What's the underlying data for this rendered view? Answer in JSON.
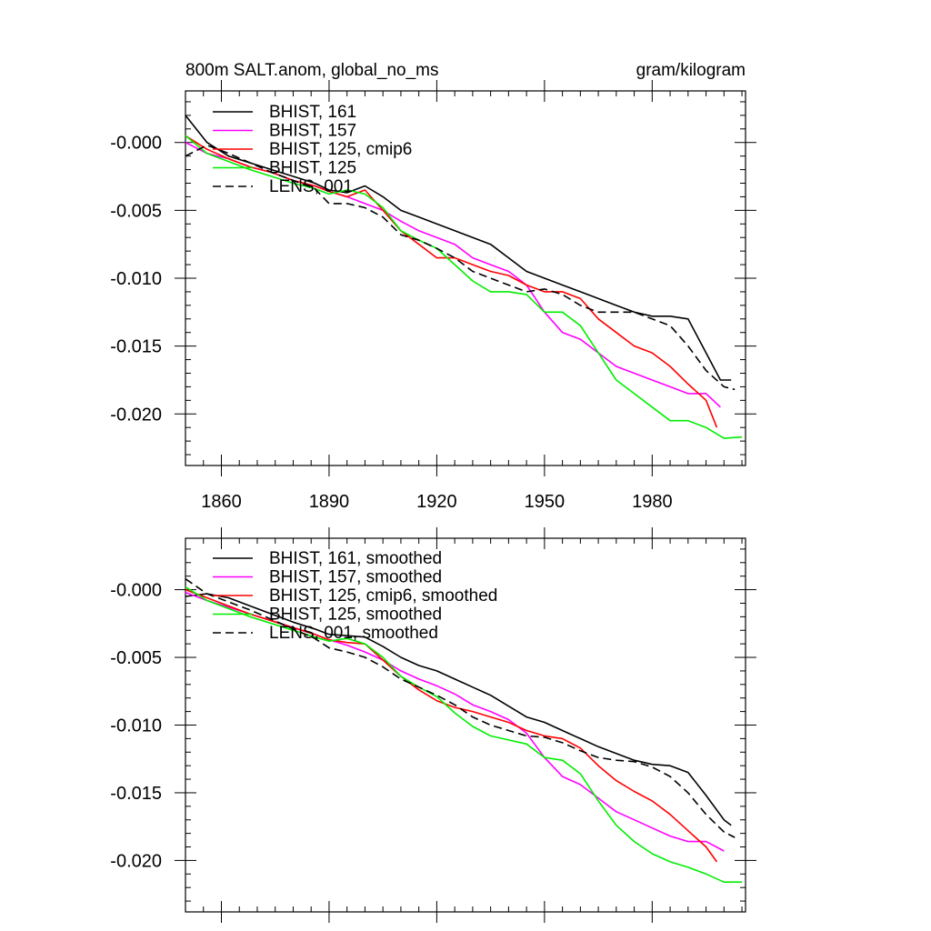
{
  "chart_data": [
    {
      "type": "line",
      "title_left": "800m SALT.anom, global_no_ms",
      "title_right": "gram/kilogram",
      "xlim": [
        1850,
        2006
      ],
      "ylim": [
        -0.0238,
        0.0038
      ],
      "x_ticks": [
        1860,
        1890,
        1920,
        1950,
        1980
      ],
      "x_tick_labels": [
        "1860",
        "1890",
        "1920",
        "1950",
        "1980"
      ],
      "y_ticks": [
        0,
        -0.005,
        -0.01,
        -0.015,
        -0.02
      ],
      "y_tick_labels": [
        "-0.000",
        "-0.005",
        "-0.010",
        "-0.015",
        "-0.020"
      ],
      "legend_placement": "top-left",
      "series": [
        {
          "name": "BHIST, 161",
          "color": "#000000",
          "dash": "solid",
          "x": [
            1850,
            1856,
            1862,
            1868,
            1874,
            1880,
            1886,
            1890,
            1895,
            1900,
            1905,
            1910,
            1915,
            1920,
            1925,
            1930,
            1935,
            1940,
            1945,
            1950,
            1955,
            1960,
            1965,
            1970,
            1975,
            1980,
            1985,
            1990,
            1995,
            1999,
            2002
          ],
          "y": [
            0.002,
            0.0,
            -0.001,
            -0.0015,
            -0.002,
            -0.0025,
            -0.003,
            -0.0035,
            -0.0037,
            -0.0032,
            -0.004,
            -0.005,
            -0.0055,
            -0.006,
            -0.0065,
            -0.007,
            -0.0075,
            -0.0085,
            -0.0095,
            -0.01,
            -0.0105,
            -0.011,
            -0.0115,
            -0.012,
            -0.0125,
            -0.0128,
            -0.0128,
            -0.013,
            -0.0155,
            -0.0175,
            -0.0175
          ]
        },
        {
          "name": "BHIST, 157",
          "color": "#ff00ff",
          "dash": "solid",
          "x": [
            1850,
            1856,
            1862,
            1868,
            1874,
            1880,
            1886,
            1890,
            1895,
            1900,
            1905,
            1910,
            1915,
            1920,
            1925,
            1930,
            1935,
            1940,
            1945,
            1950,
            1955,
            1960,
            1965,
            1970,
            1975,
            1980,
            1985,
            1990,
            1995,
            1999
          ],
          "y": [
            0.0,
            -0.0008,
            -0.0012,
            -0.0018,
            -0.0022,
            -0.0028,
            -0.0032,
            -0.0036,
            -0.004,
            -0.0045,
            -0.005,
            -0.0058,
            -0.0065,
            -0.007,
            -0.0075,
            -0.0085,
            -0.009,
            -0.0095,
            -0.0105,
            -0.0125,
            -0.014,
            -0.0145,
            -0.0155,
            -0.0165,
            -0.017,
            -0.0175,
            -0.018,
            -0.0185,
            -0.0185,
            -0.0195
          ]
        },
        {
          "name": "BHIST, 125, cmip6",
          "color": "#ff0000",
          "dash": "solid",
          "x": [
            1850,
            1856,
            1862,
            1868,
            1874,
            1880,
            1886,
            1890,
            1895,
            1900,
            1905,
            1910,
            1915,
            1920,
            1925,
            1930,
            1935,
            1940,
            1945,
            1950,
            1955,
            1960,
            1965,
            1970,
            1975,
            1980,
            1985,
            1990,
            1995,
            1998
          ],
          "y": [
            0.0005,
            -0.0005,
            -0.0012,
            -0.0018,
            -0.0022,
            -0.0028,
            -0.0032,
            -0.0036,
            -0.004,
            -0.0035,
            -0.005,
            -0.0065,
            -0.0075,
            -0.0085,
            -0.0085,
            -0.009,
            -0.0095,
            -0.0098,
            -0.0105,
            -0.011,
            -0.011,
            -0.0115,
            -0.013,
            -0.014,
            -0.015,
            -0.0155,
            -0.0165,
            -0.0178,
            -0.019,
            -0.021
          ]
        },
        {
          "name": "BHIST, 125",
          "color": "#00ee00",
          "dash": "solid",
          "x": [
            1850,
            1856,
            1862,
            1868,
            1874,
            1880,
            1886,
            1890,
            1895,
            1900,
            1905,
            1910,
            1915,
            1920,
            1925,
            1930,
            1935,
            1940,
            1945,
            1950,
            1955,
            1960,
            1965,
            1970,
            1975,
            1980,
            1985,
            1990,
            1995,
            2000,
            2005
          ],
          "y": [
            0.0005,
            -0.0008,
            -0.0014,
            -0.002,
            -0.0025,
            -0.003,
            -0.0034,
            -0.0038,
            -0.0035,
            -0.0038,
            -0.0048,
            -0.0065,
            -0.0072,
            -0.0078,
            -0.009,
            -0.0102,
            -0.011,
            -0.011,
            -0.0112,
            -0.0125,
            -0.0125,
            -0.0135,
            -0.0155,
            -0.0175,
            -0.0185,
            -0.0195,
            -0.0205,
            -0.0205,
            -0.021,
            -0.0218,
            -0.0217
          ]
        },
        {
          "name": "LENS, 001",
          "color": "#000000",
          "dash": "dashed",
          "x": [
            1850,
            1856,
            1862,
            1868,
            1874,
            1880,
            1886,
            1890,
            1895,
            1900,
            1905,
            1910,
            1915,
            1920,
            1925,
            1930,
            1935,
            1940,
            1945,
            1950,
            1955,
            1960,
            1965,
            1970,
            1975,
            1980,
            1985,
            1990,
            1995,
            2000,
            2003
          ],
          "y": [
            -0.001,
            -0.0002,
            -0.0008,
            -0.0015,
            -0.0022,
            -0.0028,
            -0.0034,
            -0.0045,
            -0.0045,
            -0.0048,
            -0.0055,
            -0.0068,
            -0.0072,
            -0.0078,
            -0.0085,
            -0.0095,
            -0.01,
            -0.0105,
            -0.011,
            -0.0108,
            -0.0112,
            -0.012,
            -0.0125,
            -0.0125,
            -0.0125,
            -0.013,
            -0.0135,
            -0.015,
            -0.0168,
            -0.018,
            -0.0182
          ]
        }
      ]
    },
    {
      "type": "line",
      "xlim": [
        1850,
        2006
      ],
      "ylim": [
        -0.0238,
        0.0038
      ],
      "x_ticks": [
        1860,
        1890,
        1920,
        1950,
        1980
      ],
      "y_ticks": [
        0,
        -0.005,
        -0.01,
        -0.015,
        -0.02
      ],
      "y_tick_labels": [
        "-0.000",
        "-0.005",
        "-0.010",
        "-0.015",
        "-0.020"
      ],
      "legend_placement": "top-left",
      "series": [
        {
          "name": "BHIST, 161, smoothed",
          "color": "#000000",
          "dash": "solid",
          "x": [
            1850,
            1856,
            1862,
            1868,
            1874,
            1880,
            1886,
            1890,
            1895,
            1900,
            1905,
            1910,
            1915,
            1920,
            1925,
            1930,
            1935,
            1940,
            1945,
            1950,
            1955,
            1960,
            1965,
            1970,
            1975,
            1980,
            1985,
            1990,
            1995,
            2000,
            2002
          ],
          "y": [
            -0.0005,
            -0.0003,
            -0.0006,
            -0.0012,
            -0.0018,
            -0.0024,
            -0.0029,
            -0.0033,
            -0.0034,
            -0.0035,
            -0.0042,
            -0.005,
            -0.0056,
            -0.006,
            -0.0066,
            -0.0072,
            -0.0078,
            -0.0086,
            -0.0094,
            -0.0098,
            -0.0104,
            -0.011,
            -0.0116,
            -0.0121,
            -0.0126,
            -0.0129,
            -0.013,
            -0.0135,
            -0.0152,
            -0.017,
            -0.0174
          ]
        },
        {
          "name": "BHIST, 157, smoothed",
          "color": "#ff00ff",
          "dash": "solid",
          "x": [
            1850,
            1856,
            1862,
            1868,
            1874,
            1880,
            1886,
            1890,
            1895,
            1900,
            1905,
            1910,
            1915,
            1920,
            1925,
            1930,
            1935,
            1940,
            1945,
            1950,
            1955,
            1960,
            1965,
            1970,
            1975,
            1980,
            1985,
            1990,
            1995,
            2000
          ],
          "y": [
            -0.0002,
            -0.0008,
            -0.0013,
            -0.0018,
            -0.0023,
            -0.0028,
            -0.0033,
            -0.0037,
            -0.0041,
            -0.0046,
            -0.0052,
            -0.006,
            -0.0066,
            -0.0071,
            -0.0077,
            -0.0085,
            -0.009,
            -0.0096,
            -0.0106,
            -0.0124,
            -0.0138,
            -0.0144,
            -0.0154,
            -0.0164,
            -0.017,
            -0.0176,
            -0.0182,
            -0.0186,
            -0.0186,
            -0.0193
          ]
        },
        {
          "name": "BHIST, 125, cmip6, smoothed",
          "color": "#ff0000",
          "dash": "solid",
          "x": [
            1850,
            1856,
            1862,
            1868,
            1874,
            1880,
            1886,
            1890,
            1895,
            1900,
            1905,
            1910,
            1915,
            1920,
            1925,
            1930,
            1935,
            1940,
            1945,
            1950,
            1955,
            1960,
            1965,
            1970,
            1975,
            1980,
            1985,
            1990,
            1995,
            1998
          ],
          "y": [
            0.0,
            -0.0006,
            -0.0012,
            -0.0018,
            -0.0023,
            -0.0028,
            -0.0033,
            -0.0037,
            -0.0039,
            -0.004,
            -0.0052,
            -0.0064,
            -0.0074,
            -0.0082,
            -0.0087,
            -0.009,
            -0.0094,
            -0.0098,
            -0.0104,
            -0.0108,
            -0.011,
            -0.0117,
            -0.013,
            -0.0141,
            -0.0149,
            -0.0156,
            -0.0166,
            -0.0178,
            -0.019,
            -0.0201
          ]
        },
        {
          "name": "BHIST, 125, smoothed",
          "color": "#00ee00",
          "dash": "solid",
          "x": [
            1850,
            1856,
            1862,
            1868,
            1874,
            1880,
            1886,
            1890,
            1895,
            1900,
            1905,
            1910,
            1915,
            1920,
            1925,
            1930,
            1935,
            1940,
            1945,
            1950,
            1955,
            1960,
            1965,
            1970,
            1975,
            1980,
            1985,
            1990,
            1995,
            2000,
            2005
          ],
          "y": [
            0.0002,
            -0.0008,
            -0.0014,
            -0.002,
            -0.0025,
            -0.003,
            -0.0035,
            -0.0038,
            -0.0036,
            -0.004,
            -0.005,
            -0.0064,
            -0.0072,
            -0.0079,
            -0.0091,
            -0.0101,
            -0.0108,
            -0.0111,
            -0.0114,
            -0.0124,
            -0.0126,
            -0.0136,
            -0.0156,
            -0.0174,
            -0.0186,
            -0.0195,
            -0.0201,
            -0.0205,
            -0.021,
            -0.0216,
            -0.0216
          ]
        },
        {
          "name": "LENS, 001, smoothed",
          "color": "#000000",
          "dash": "dashed",
          "x": [
            1850,
            1856,
            1862,
            1868,
            1874,
            1880,
            1886,
            1890,
            1895,
            1900,
            1905,
            1910,
            1915,
            1920,
            1925,
            1930,
            1935,
            1940,
            1945,
            1950,
            1955,
            1960,
            1965,
            1970,
            1975,
            1980,
            1985,
            1990,
            1995,
            2000,
            2003
          ],
          "y": [
            0.0008,
            -0.0003,
            -0.0009,
            -0.0015,
            -0.0022,
            -0.0029,
            -0.0036,
            -0.0043,
            -0.0046,
            -0.005,
            -0.0057,
            -0.0066,
            -0.0072,
            -0.0078,
            -0.0085,
            -0.0094,
            -0.01,
            -0.0104,
            -0.0108,
            -0.0109,
            -0.0113,
            -0.0119,
            -0.0124,
            -0.0126,
            -0.0127,
            -0.0131,
            -0.0138,
            -0.015,
            -0.0166,
            -0.0179,
            -0.0183
          ]
        }
      ]
    }
  ]
}
